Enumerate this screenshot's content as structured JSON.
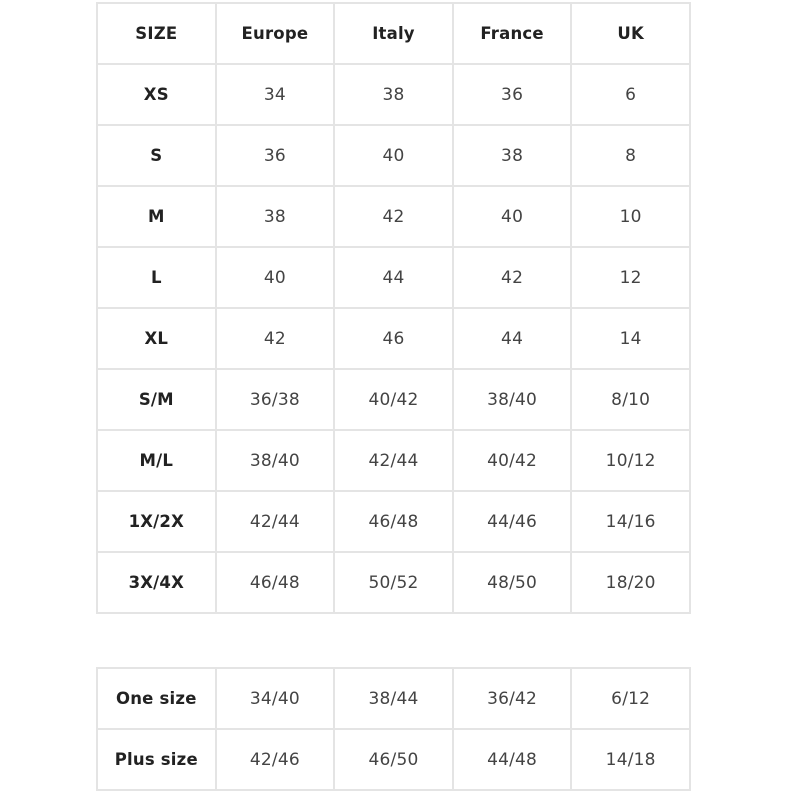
{
  "size_chart": {
    "headers": [
      "SIZE",
      "Europe",
      "Italy",
      "France",
      "UK"
    ],
    "rows": [
      [
        "XS",
        "34",
        "38",
        "36",
        "6"
      ],
      [
        "S",
        "36",
        "40",
        "38",
        "8"
      ],
      [
        "M",
        "38",
        "42",
        "40",
        "10"
      ],
      [
        "L",
        "40",
        "44",
        "42",
        "12"
      ],
      [
        "XL",
        "42",
        "46",
        "44",
        "14"
      ],
      [
        "S/M",
        "36/38",
        "40/42",
        "38/40",
        "8/10"
      ],
      [
        "M/L",
        "38/40",
        "42/44",
        "40/42",
        "10/12"
      ],
      [
        "1X/2X",
        "42/44",
        "46/48",
        "44/46",
        "14/16"
      ],
      [
        "3X/4X",
        "46/48",
        "50/52",
        "48/50",
        "18/20"
      ]
    ]
  },
  "special_sizes": {
    "rows": [
      [
        "One size",
        "34/40",
        "38/44",
        "36/42",
        "6/12"
      ],
      [
        "Plus size",
        "42/46",
        "46/50",
        "44/48",
        "14/18"
      ]
    ]
  }
}
